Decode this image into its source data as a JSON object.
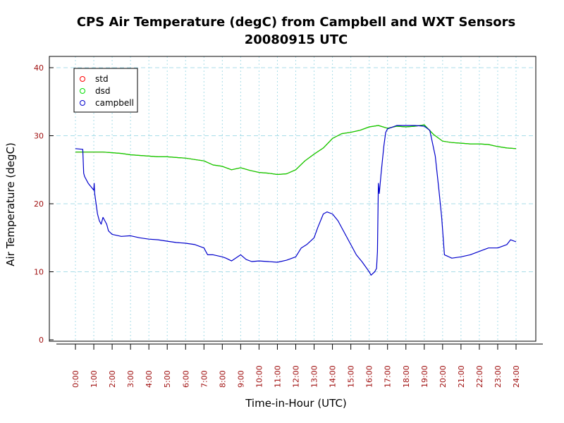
{
  "chart_data": {
    "type": "line",
    "title": "CPS Air Temperature (degC) from Campbell and WXT Sensors",
    "subtitle": "20080915  UTC",
    "xlabel": "Time-in-Hour (UTC)",
    "ylabel": "Air Temperature (degC)",
    "xlim": [
      0,
      24
    ],
    "ylim": [
      0,
      40
    ],
    "x_ticks": [
      0,
      1,
      2,
      3,
      4,
      5,
      6,
      7,
      8,
      9,
      10,
      11,
      12,
      13,
      14,
      15,
      16,
      17,
      18,
      19,
      20,
      21,
      22,
      23,
      24
    ],
    "x_tick_labels": [
      "0:00",
      "1:00",
      "2:00",
      "3:00",
      "4:00",
      "5:00",
      "6:00",
      "7:00",
      "8:00",
      "9:00",
      "10:00",
      "11:00",
      "12:00",
      "13:00",
      "14:00",
      "15:00",
      "16:00",
      "17:00",
      "18:00",
      "19:00",
      "20:00",
      "21:00",
      "22:00",
      "23:00",
      "24:00"
    ],
    "y_ticks": [
      0,
      10,
      20,
      30,
      40
    ],
    "y_tick_labels": [
      "0",
      "10",
      "20",
      "30",
      "40"
    ],
    "grid": true,
    "legend_position": "top-left",
    "series": [
      {
        "name": "std",
        "color": "#ff0000",
        "x": [
          0,
          0.5,
          1,
          1.5,
          2,
          2.5,
          3,
          3.5,
          4,
          4.5,
          5,
          5.5,
          6,
          6.5,
          7,
          7.5,
          8,
          8.5,
          9,
          9.5,
          10,
          10.5,
          11,
          11.5,
          12,
          12.5,
          13,
          13.5,
          14,
          14.5,
          15,
          15.5,
          16,
          16.5,
          17,
          17.5,
          18,
          18.5,
          19,
          19.5,
          20,
          20.5,
          21,
          21.5,
          22,
          22.5,
          23,
          23.5,
          24
        ],
        "y": [
          27.6,
          27.6,
          27.6,
          27.6,
          27.5,
          27.4,
          27.2,
          27.1,
          27.0,
          26.9,
          26.9,
          26.8,
          26.7,
          26.5,
          26.3,
          25.7,
          25.5,
          25.0,
          25.3,
          24.9,
          24.6,
          24.5,
          24.3,
          24.4,
          25.0,
          26.3,
          27.3,
          28.2,
          29.6,
          30.3,
          30.5,
          30.8,
          31.3,
          31.5,
          31.1,
          31.4,
          31.3,
          31.4,
          31.6,
          30.2,
          29.2,
          29.0,
          28.9,
          28.8,
          28.8,
          28.7,
          28.4,
          28.2,
          28.1
        ]
      },
      {
        "name": "dsd",
        "color": "#00dd00",
        "x": [
          0,
          0.5,
          1,
          1.5,
          2,
          2.5,
          3,
          3.5,
          4,
          4.5,
          5,
          5.5,
          6,
          6.5,
          7,
          7.5,
          8,
          8.5,
          9,
          9.5,
          10,
          10.5,
          11,
          11.5,
          12,
          12.5,
          13,
          13.5,
          14,
          14.5,
          15,
          15.5,
          16,
          16.5,
          17,
          17.5,
          18,
          18.5,
          19,
          19.5,
          20,
          20.5,
          21,
          21.5,
          22,
          22.5,
          23,
          23.5,
          24
        ],
        "y": [
          27.6,
          27.6,
          27.6,
          27.6,
          27.5,
          27.4,
          27.2,
          27.1,
          27.0,
          26.9,
          26.9,
          26.8,
          26.7,
          26.5,
          26.3,
          25.7,
          25.5,
          25.0,
          25.3,
          24.9,
          24.6,
          24.5,
          24.3,
          24.4,
          25.0,
          26.3,
          27.3,
          28.2,
          29.6,
          30.3,
          30.5,
          30.8,
          31.3,
          31.5,
          31.1,
          31.4,
          31.3,
          31.4,
          31.6,
          30.2,
          29.2,
          29.0,
          28.9,
          28.8,
          28.8,
          28.7,
          28.4,
          28.2,
          28.1
        ]
      },
      {
        "name": "campbell",
        "color": "#0000cc",
        "x": [
          0,
          0.4,
          0.45,
          0.5,
          0.7,
          1,
          1.02,
          1.05,
          1.2,
          1.3,
          1.4,
          1.5,
          1.6,
          1.7,
          1.8,
          2,
          2.5,
          3,
          3.5,
          4,
          4.5,
          5,
          5.5,
          6,
          6.5,
          7,
          7.2,
          7.5,
          8,
          8.2,
          8.5,
          9,
          9.3,
          9.6,
          10,
          10.5,
          11,
          11.5,
          12,
          12.3,
          12.6,
          13,
          13.2,
          13.5,
          13.7,
          14,
          14.3,
          14.6,
          15,
          15.3,
          15.6,
          16,
          16.1,
          16.3,
          16.4,
          16.45,
          16.5,
          16.55,
          16.65,
          16.8,
          16.9,
          17,
          17.2,
          17.5,
          18,
          18.5,
          19,
          19.3,
          19.6,
          19.8,
          19.95,
          20.1,
          20.5,
          21,
          21.5,
          22,
          22.5,
          23,
          23.5,
          23.7,
          24
        ],
        "y": [
          28.1,
          28.0,
          24.5,
          24.0,
          23.0,
          22.0,
          23.0,
          21.5,
          18.5,
          17.5,
          17.0,
          18.0,
          17.5,
          17.0,
          16.0,
          15.5,
          15.2,
          15.3,
          15.0,
          14.8,
          14.7,
          14.5,
          14.3,
          14.2,
          14.0,
          13.5,
          12.5,
          12.5,
          12.2,
          12.0,
          11.6,
          12.5,
          11.8,
          11.5,
          11.6,
          11.5,
          11.4,
          11.7,
          12.2,
          13.5,
          14.0,
          15.0,
          16.5,
          18.5,
          18.8,
          18.5,
          17.5,
          16.0,
          14.0,
          12.5,
          11.5,
          10.0,
          9.5,
          10.0,
          10.5,
          13.0,
          23.0,
          21.5,
          24.5,
          28.5,
          30.5,
          31.0,
          31.2,
          31.5,
          31.5,
          31.5,
          31.4,
          30.8,
          27.0,
          22.0,
          18.0,
          12.5,
          12.0,
          12.2,
          12.5,
          13.0,
          13.5,
          13.5,
          14.0,
          14.7,
          14.4
        ]
      }
    ]
  }
}
